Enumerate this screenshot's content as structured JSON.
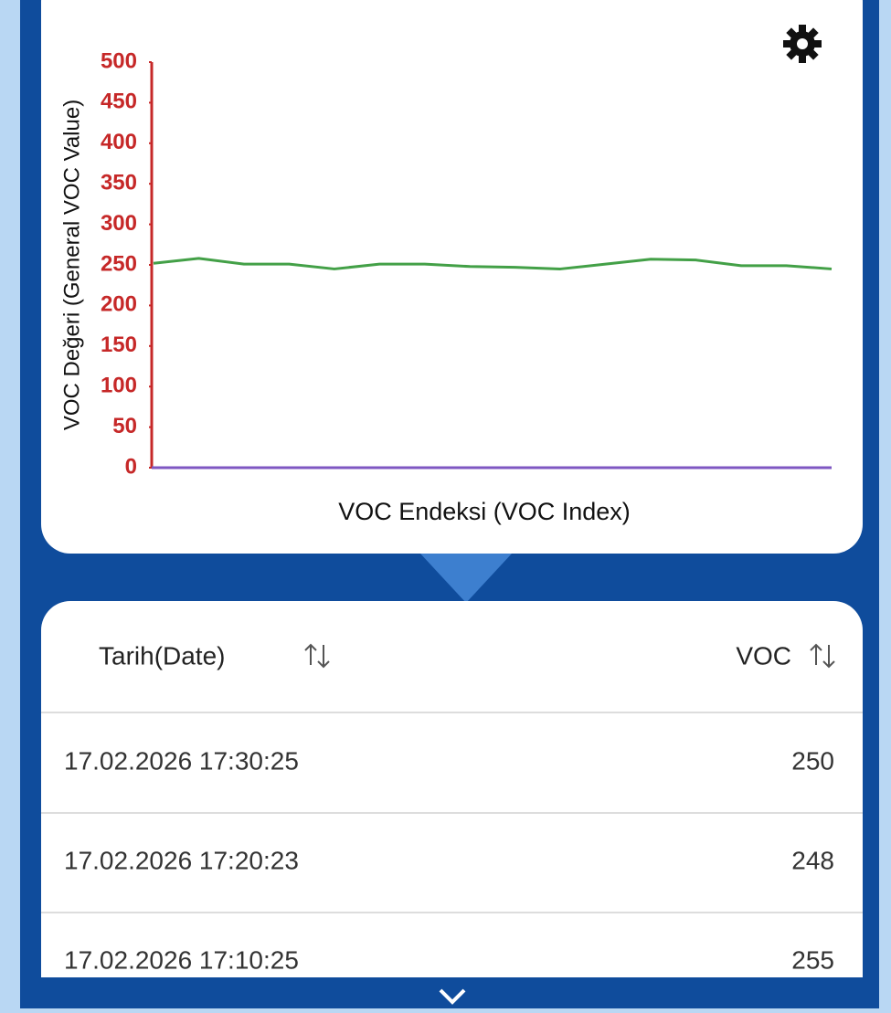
{
  "chart_data": {
    "type": "line",
    "y_label": "VOC Değeri (General VOC Value)",
    "x_label": "VOC Endeksi (VOC Index)",
    "categories": [
      null,
      null,
      null,
      null,
      null,
      null,
      null,
      null,
      null,
      null,
      null,
      null,
      null,
      null,
      null,
      null
    ],
    "series": [
      {
        "color": "#43a047",
        "values": [
          252,
          258,
          251,
          251,
          245,
          251,
          251,
          248,
          247,
          245,
          251,
          257,
          256,
          249,
          249,
          245
        ]
      }
    ],
    "ylim": [
      0,
      500
    ],
    "yticks": [
      0,
      50,
      100,
      150,
      200,
      250,
      300,
      350,
      400,
      450,
      500
    ],
    "axis_color": "#c62828",
    "x_axis_color": "#7e57c2"
  },
  "table": {
    "headers": [
      "Tarih(Date)",
      "VOC"
    ],
    "rows": [
      [
        "17.02.2026 17:30:25",
        250
      ],
      [
        "17.02.2026 17:20:23",
        248
      ],
      [
        "17.02.2026 17:10:25",
        255
      ]
    ]
  }
}
